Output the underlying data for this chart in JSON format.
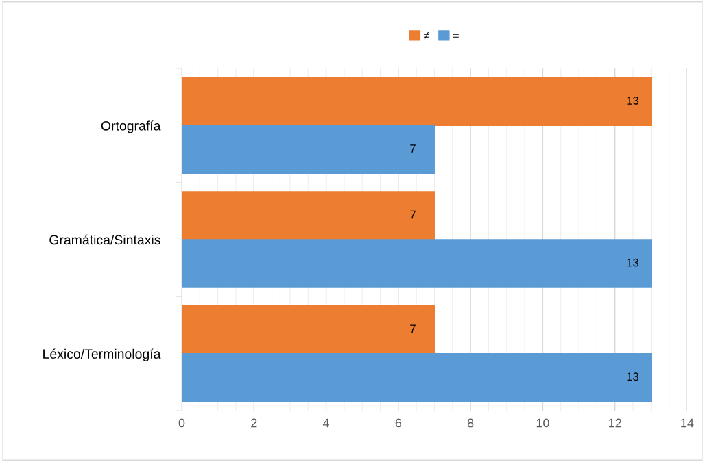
{
  "chart_data": {
    "type": "bar",
    "orientation": "horizontal",
    "categories": [
      "Ortografía",
      "Gramática/Sintaxis",
      "Léxico/Terminología"
    ],
    "series": [
      {
        "name": "≠",
        "color": "#ed7d31",
        "values": [
          13,
          7,
          7
        ]
      },
      {
        "name": "=",
        "color": "#5b9bd5",
        "values": [
          7,
          13,
          13
        ]
      }
    ],
    "xlim": [
      0,
      14
    ],
    "xticks": [
      0,
      2,
      4,
      6,
      8,
      10,
      12,
      14
    ],
    "grid": "x",
    "legend": "top",
    "data_labels": true
  }
}
